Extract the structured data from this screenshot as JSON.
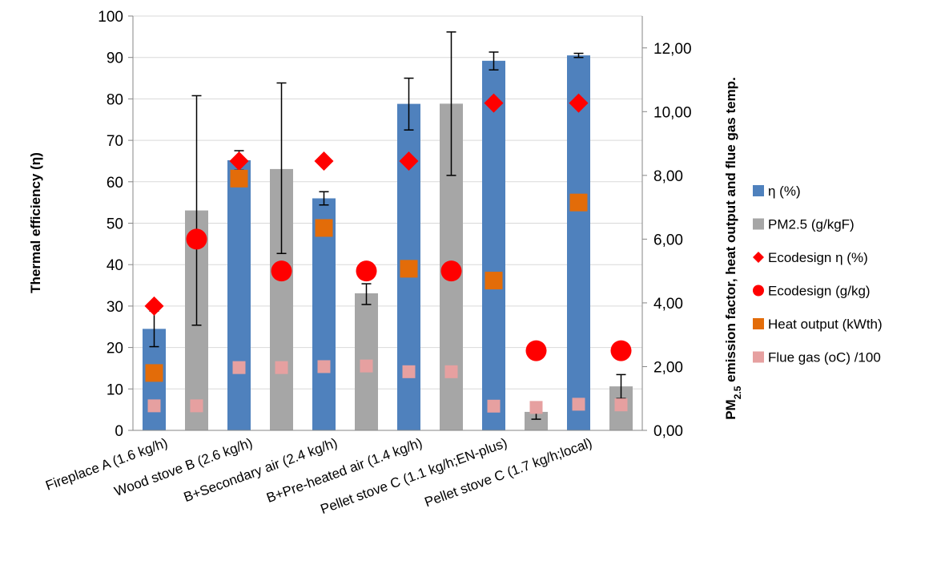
{
  "chart_data": {
    "type": "bar",
    "categories": [
      "Fireplace A (1.6 kg/h)",
      "Wood stove B (2.6 kg/h)",
      "B+Secondary air (2.4 kg/h)",
      "B+Pre-heated air (1.4 kg/h)",
      "Pellet stove C (1.1 kg/h;EN-plus)",
      "Pellet stove C (1.7 kg/h;local)"
    ],
    "ylabel_left": "Thermal efficiency (η)",
    "ylabel_right_main": "PM",
    "ylabel_right_sub": "2.5",
    "ylabel_right_rest": " emission factor, heat output and flue gas temp.",
    "ylim_left": [
      0,
      100
    ],
    "ylim_right": [
      0,
      13
    ],
    "left_ticks": [
      "0",
      "10",
      "20",
      "30",
      "40",
      "50",
      "60",
      "70",
      "80",
      "90",
      "100"
    ],
    "right_ticks": [
      "0,00",
      "2,00",
      "4,00",
      "6,00",
      "8,00",
      "10,00",
      "12,00"
    ],
    "right_tick_values": [
      0,
      2,
      4,
      6,
      8,
      10,
      12
    ],
    "legend_position": "right",
    "series": [
      {
        "name": "η (%)",
        "kind": "bar",
        "axis": "left",
        "color": "#4f81bd",
        "values": [
          24.5,
          65.2,
          56.0,
          78.8,
          89.2,
          90.5
        ],
        "err_low": [
          20.2,
          62.8,
          54.4,
          72.5,
          87.0,
          90.0
        ],
        "err_high": [
          28.8,
          67.5,
          57.6,
          85.0,
          91.3,
          91.0
        ]
      },
      {
        "name": "PM2.5 (g/kgF)",
        "kind": "bar",
        "axis": "right",
        "color": "#a6a6a6",
        "values": [
          6.9,
          8.2,
          4.3,
          10.25,
          0.58,
          1.38
        ],
        "err_low": [
          3.3,
          5.55,
          3.95,
          8.0,
          0.35,
          1.0
        ],
        "err_high": [
          10.5,
          10.9,
          4.6,
          12.5,
          0.8,
          1.75
        ]
      },
      {
        "name": "Ecodesign η (%)",
        "kind": "diamond",
        "axis": "left",
        "color": "#ff0000",
        "values": [
          30,
          65,
          65,
          65,
          79,
          79
        ]
      },
      {
        "name": "Ecodesign (g/kg)",
        "kind": "circle",
        "axis": "right",
        "color": "#ff0000",
        "values": [
          6.0,
          5.0,
          5.0,
          5.0,
          2.5,
          2.5
        ]
      },
      {
        "name": "Heat output (kWth)",
        "kind": "square",
        "axis": "right",
        "color": "#e36c09",
        "values": [
          1.8,
          7.9,
          6.35,
          5.07,
          4.7,
          7.15
        ]
      },
      {
        "name": "Flue gas (oC) /100",
        "kind": "square",
        "axis": "right",
        "color": "#e6a0a0",
        "values_blue": [
          0.77,
          1.97,
          2.0,
          1.84,
          0.76,
          0.82
        ],
        "values_grey": [
          0.77,
          1.97,
          2.02,
          1.84,
          0.72,
          0.8
        ]
      }
    ]
  }
}
